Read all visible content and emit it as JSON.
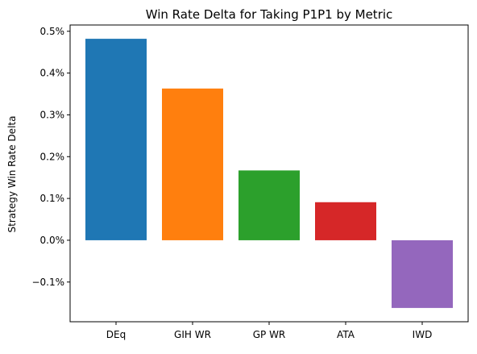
{
  "chart_data": {
    "type": "bar",
    "title": "Win Rate Delta for Taking P1P1 by Metric",
    "xlabel": "",
    "ylabel": "Strategy Win Rate Delta",
    "categories": [
      "DEq",
      "GIH WR",
      "GP WR",
      "ATA",
      "IWD"
    ],
    "values": [
      0.482,
      0.363,
      0.167,
      0.091,
      -0.162
    ],
    "value_unit": "%",
    "colors": [
      "#1f77b4",
      "#ff7f0e",
      "#2ca02c",
      "#d62728",
      "#9467bd"
    ],
    "ylim": [
      -0.195,
      0.515
    ],
    "yticks": [
      -0.1,
      0.0,
      0.1,
      0.2,
      0.3,
      0.4,
      0.5
    ],
    "ytick_labels": [
      "−0.1%",
      "0.0%",
      "0.1%",
      "0.2%",
      "0.3%",
      "0.4%",
      "0.5%"
    ],
    "grid": false,
    "legend": "none"
  }
}
